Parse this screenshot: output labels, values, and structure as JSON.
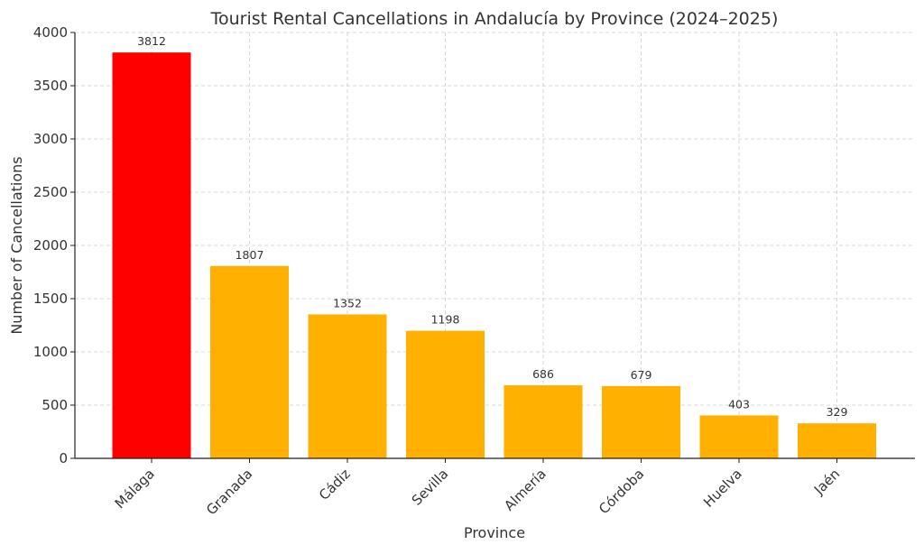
{
  "chart_data": {
    "type": "bar",
    "title": "Tourist Rental Cancellations in Andalucía by Province (2024–2025)",
    "xlabel": "Province",
    "ylabel": "Number of Cancellations",
    "categories": [
      "Málaga",
      "Granada",
      "Cádiz",
      "Sevilla",
      "Almería",
      "Córdoba",
      "Huelva",
      "Jaén"
    ],
    "values": [
      3812,
      1807,
      1352,
      1198,
      686,
      679,
      403,
      329
    ],
    "data_labels": [
      "3812",
      "1807",
      "1352",
      "1198",
      "686",
      "679",
      "403",
      "329"
    ],
    "bar_colors": [
      "#ff0000",
      "#ffb000",
      "#ffb000",
      "#ffb000",
      "#ffb000",
      "#ffb000",
      "#ffb000",
      "#ffb000"
    ],
    "ylim": [
      0,
      4000
    ],
    "yticks": [
      0,
      500,
      1000,
      1500,
      2000,
      2500,
      3000,
      3500,
      4000
    ],
    "grid": true,
    "legend": "none"
  }
}
